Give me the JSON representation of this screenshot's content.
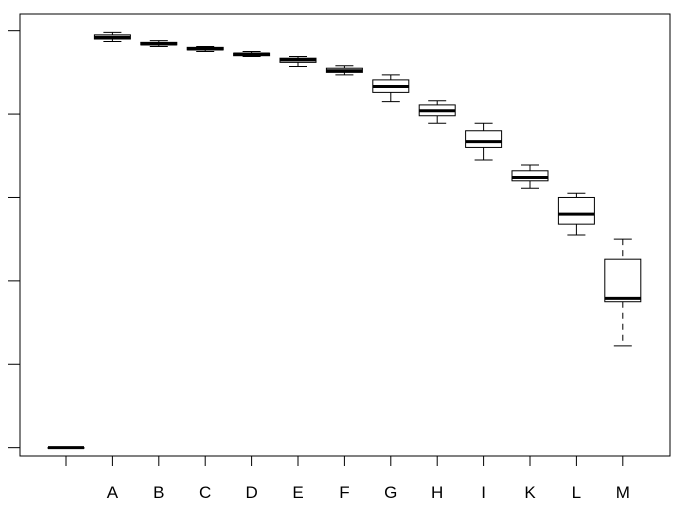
{
  "chart_data": {
    "type": "boxplot",
    "title": "",
    "xlabel": "",
    "ylabel": "",
    "y_tick_labels_shown": false,
    "ylim": [
      -0.1,
      5.2
    ],
    "y_ticks": [
      0,
      1,
      2,
      3,
      4,
      5
    ],
    "grid": false,
    "legend": "none",
    "categories": [
      "",
      "A",
      "B",
      "C",
      "D",
      "E",
      "F",
      "G",
      "H",
      "I",
      "K",
      "L",
      "M"
    ],
    "boxes": [
      {
        "label": "",
        "whisker_low": 0.0,
        "q1": 0.0,
        "median": 0.0,
        "q3": 0.0,
        "whisker_high": 0.0
      },
      {
        "label": "A",
        "whisker_low": 4.87,
        "q1": 4.9,
        "median": 4.92,
        "q3": 4.95,
        "whisker_high": 4.98
      },
      {
        "label": "B",
        "whisker_low": 4.81,
        "q1": 4.83,
        "median": 4.84,
        "q3": 4.86,
        "whisker_high": 4.88
      },
      {
        "label": "C",
        "whisker_low": 4.75,
        "q1": 4.77,
        "median": 4.78,
        "q3": 4.8,
        "whisker_high": 4.81
      },
      {
        "label": "D",
        "whisker_low": 4.69,
        "q1": 4.7,
        "median": 4.72,
        "q3": 4.73,
        "whisker_high": 4.75
      },
      {
        "label": "E",
        "whisker_low": 4.57,
        "q1": 4.62,
        "median": 4.65,
        "q3": 4.67,
        "whisker_high": 4.69
      },
      {
        "label": "F",
        "whisker_low": 4.47,
        "q1": 4.5,
        "median": 4.52,
        "q3": 4.55,
        "whisker_high": 4.58
      },
      {
        "label": "G",
        "whisker_low": 4.15,
        "q1": 4.26,
        "median": 4.33,
        "q3": 4.41,
        "whisker_high": 4.47
      },
      {
        "label": "H",
        "whisker_low": 3.89,
        "q1": 3.98,
        "median": 4.04,
        "q3": 4.11,
        "whisker_high": 4.16
      },
      {
        "label": "I",
        "whisker_low": 3.45,
        "q1": 3.6,
        "median": 3.67,
        "q3": 3.8,
        "whisker_high": 3.89
      },
      {
        "label": "K",
        "whisker_low": 3.11,
        "q1": 3.2,
        "median": 3.24,
        "q3": 3.32,
        "whisker_high": 3.39
      },
      {
        "label": "L",
        "whisker_low": 2.55,
        "q1": 2.68,
        "median": 2.8,
        "q3": 3.0,
        "whisker_high": 3.05
      },
      {
        "label": "M",
        "whisker_low": 1.22,
        "q1": 1.75,
        "median": 1.79,
        "q3": 2.26,
        "whisker_high": 2.5
      }
    ],
    "whisker_style": {
      "M": "dashed"
    }
  }
}
